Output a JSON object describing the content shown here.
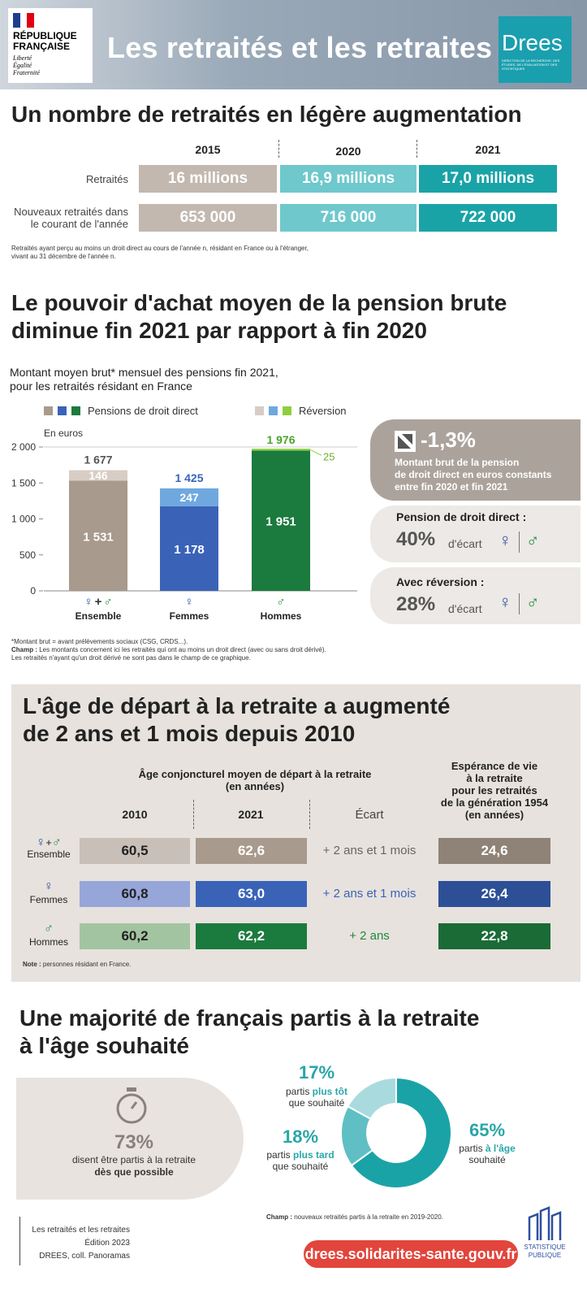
{
  "header": {
    "title": "Les retraités et les retraites",
    "rf_line1": "RÉPUBLIQUE",
    "rf_line2": "FRANÇAISE",
    "rf_motto1": "Liberté",
    "rf_motto2": "Égalité",
    "rf_motto3": "Fraternité",
    "drees": "Drees",
    "drees_sub": "DIRECTION DE LA RECHERCHE, DES ÉTUDES, DE L'ÉVALUATION ET DES STATISTIQUES"
  },
  "section1": {
    "title": "Un nombre de retraités en légère augmentation",
    "years": [
      "2015",
      "2020",
      "2021"
    ],
    "row1_label": "Retraités",
    "row1_values": [
      "16 millions",
      "16,9 millions",
      "17,0 millions"
    ],
    "row2_label_1": "Nouveaux retraités dans",
    "row2_label_2": "le courant de l'année",
    "row2_values": [
      "653 000",
      "716 000",
      "722 000"
    ],
    "colors": [
      "#c2b8b0",
      "#6ec8cc",
      "#1aa3a7"
    ],
    "note_1": "Retraités ayant perçu au moins un droit direct au cours de l'année n, résidant en France ou à l'étranger,",
    "note_2": "vivant au 31 décembre de l'année n."
  },
  "section2": {
    "title_1": "Le pouvoir d'achat moyen de la pension brute",
    "title_2": "diminue fin 2021 par rapport à fin 2020",
    "subtitle_1": "Montant moyen brut* mensuel des pensions fin 2021,",
    "subtitle_2": "pour les retraités résidant en France",
    "legend_direct": "Pensions de droit direct",
    "legend_reversion": "Réversion",
    "unit": "En euros",
    "sym_f": "♀",
    "sym_m": "♂",
    "sym_plus": "+",
    "kpi_value": "-1,3%",
    "kpi_text_1": "Montant brut de la pension",
    "kpi_text_2": "de droit direct en euros constants",
    "kpi_text_3": "entre fin 2020 et fin 2021",
    "gap1_title": "Pension de droit direct :",
    "gap1_pct": "40%",
    "gap2_title": "Avec réversion :",
    "gap2_pct": "28%",
    "gap_word": "d'écart",
    "note_1": "*Montant brut = avant prélèvements sociaux (CSG, CRDS...).",
    "note_2_bold": "Champ :",
    "note_2": " Les montants concernent ici les retraités qui ont au moins un droit direct (avec ou sans droit dérivé).",
    "note_3": "Les retraités n'ayant qu'un droit dérivé ne sont pas dans le champ de ce graphique."
  },
  "chart_data": {
    "type": "bar",
    "stacked": true,
    "categories": [
      "Ensemble",
      "Femmes",
      "Hommes"
    ],
    "series": [
      {
        "name": "Pensions de droit direct",
        "values": [
          1531,
          1178,
          1951
        ],
        "colors": [
          "#a89a8c",
          "#3a63b8",
          "#1b7a3e"
        ]
      },
      {
        "name": "Réversion",
        "values": [
          146,
          247,
          25
        ],
        "colors": [
          "#d7cdc4",
          "#6fa8df",
          "#8fcf3e"
        ]
      }
    ],
    "totals": [
      1677,
      1425,
      1976
    ],
    "total_labels": [
      "1 677",
      "1 425",
      "1 976"
    ],
    "value_labels_direct": [
      "1 531",
      "1 178",
      "1 951"
    ],
    "value_labels_reversion": [
      "146",
      "247",
      "25"
    ],
    "ylabel": "En euros",
    "ylim": [
      0,
      2000
    ],
    "yticks": [
      0,
      500,
      1000,
      1500,
      2000
    ],
    "ytick_labels": [
      "0",
      "500",
      "1 000",
      "1 500",
      "2 000"
    ],
    "grid": false,
    "legend_placement": "top"
  },
  "section3": {
    "title_1": "L'âge de départ à la retraite a augmenté",
    "title_2": "de 2 ans et 1 mois depuis 2010",
    "head_age_1": "Âge conjoncturel moyen de départ à la retraite",
    "head_age_2": "(en années)",
    "head_2010": "2010",
    "head_2021": "2021",
    "head_ecart": "Écart",
    "head_esp_1": "Espérance de vie",
    "head_esp_2": "à la retraite",
    "head_esp_3": "pour les retraités",
    "head_esp_4": "de la génération 1954",
    "head_esp_5": "(en années)",
    "rows": [
      {
        "label": "Ensemble",
        "v2010": "60,5",
        "v2021": "62,6",
        "ecart": "+ 2 ans et 1 mois",
        "esp": "24,6"
      },
      {
        "label": "Femmes",
        "v2010": "60,8",
        "v2021": "63,0",
        "ecart": "+ 2 ans et 1 mois",
        "esp": "26,4"
      },
      {
        "label": "Hommes",
        "v2010": "60,2",
        "v2021": "62,2",
        "ecart": "+ 2 ans",
        "esp": "22,8"
      }
    ],
    "note_bold": "Note :",
    "note": " personnes résidant en France."
  },
  "section4": {
    "title_1": "Une majorité de français partis à la retraite",
    "title_2": "à l'âge souhaité",
    "left_pct": "73%",
    "left_text_1": "disent être partis à la retraite",
    "left_text_2": "dès que possible",
    "donut": [
      {
        "pct": "65%",
        "value": 65,
        "pre": "partis ",
        "hl": "à l'âge",
        "post": "souhaité",
        "color": "#1aa3a7"
      },
      {
        "pct": "18%",
        "value": 18,
        "pre": "partis ",
        "hl": "plus tard",
        "post": "que souhaité",
        "color": "#5fbfc4"
      },
      {
        "pct": "17%",
        "value": 17,
        "pre": "partis ",
        "hl": "plus tôt",
        "post": "que souhaité",
        "color": "#a9dbde"
      }
    ],
    "note_bold": "Champ :",
    "note": " nouveaux retraités partis à la retraite en 2019-2020."
  },
  "footer": {
    "source_1": "Les retraités et les retraites",
    "source_2": "Édition 2023",
    "source_3": "DREES, coll. Panoramas",
    "url": "drees.solidarites-sante.gouv.fr",
    "sp_1": "STATISTIQUE",
    "sp_2": "PUBLIQUE"
  }
}
